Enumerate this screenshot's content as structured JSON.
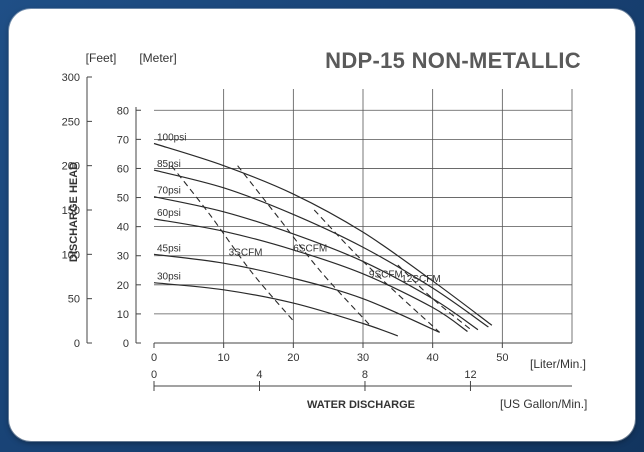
{
  "chart_data": {
    "type": "line",
    "title": "NDP-15 NON-METALLIC",
    "xlabel": "WATER DISCHARGE",
    "ylabel": "DISCHARGE HEAD",
    "x_unit_primary": "[Liter/Min.]",
    "x_unit_secondary": "[US Gallon/Min.]",
    "y_unit_primary": "[Feet]",
    "y_unit_secondary": "[Meter]",
    "xlim": [
      0,
      60
    ],
    "ylim": [
      0,
      300
    ],
    "x_ticks": [
      0,
      10,
      20,
      30,
      40,
      50
    ],
    "x2_ticks": [
      0,
      4,
      8,
      12
    ],
    "y_ticks_feet": [
      0,
      50,
      100,
      150,
      200,
      250,
      300
    ],
    "y_ticks_meter": [
      0,
      10,
      20,
      30,
      40,
      50,
      60,
      70,
      80
    ],
    "grid": true,
    "series": [
      {
        "name": "100psi",
        "style": "solid",
        "x": [
          0,
          10,
          20,
          30,
          40,
          48.5
        ],
        "y": [
          225,
          200,
          168,
          125,
          70,
          20
        ]
      },
      {
        "name": "85psi",
        "style": "solid",
        "x": [
          0,
          10,
          20,
          30,
          40,
          48
        ],
        "y": [
          195,
          175,
          145,
          108,
          62,
          18
        ]
      },
      {
        "name": "70psi",
        "style": "solid",
        "x": [
          0,
          10,
          20,
          30,
          40,
          46.5
        ],
        "y": [
          165,
          148,
          123,
          92,
          50,
          15
        ]
      },
      {
        "name": "60psi",
        "style": "solid",
        "x": [
          0,
          10,
          20,
          30,
          40,
          45
        ],
        "y": [
          140,
          126,
          105,
          78,
          40,
          13
        ]
      },
      {
        "name": "45psi",
        "style": "solid",
        "x": [
          0,
          10,
          20,
          30,
          41
        ],
        "y": [
          100,
          90,
          73,
          50,
          12
        ]
      },
      {
        "name": "30psi",
        "style": "solid",
        "x": [
          0,
          10,
          20,
          30,
          35
        ],
        "y": [
          68,
          60,
          45,
          22,
          8
        ]
      },
      {
        "name": "3SCFM",
        "style": "dashed",
        "x": [
          2.5,
          8,
          14,
          20
        ],
        "y": [
          200,
          145,
          80,
          25
        ]
      },
      {
        "name": "6SCFM",
        "style": "dashed",
        "x": [
          12,
          18,
          24,
          31
        ],
        "y": [
          200,
          140,
          80,
          20
        ]
      },
      {
        "name": "9SCFM",
        "style": "dashed",
        "x": [
          23,
          29,
          35,
          41
        ],
        "y": [
          150,
          100,
          55,
          12
        ]
      },
      {
        "name": "12SCFM",
        "style": "dashed",
        "x": [
          35,
          40,
          45.5
        ],
        "y": [
          88,
          50,
          15
        ]
      }
    ]
  }
}
